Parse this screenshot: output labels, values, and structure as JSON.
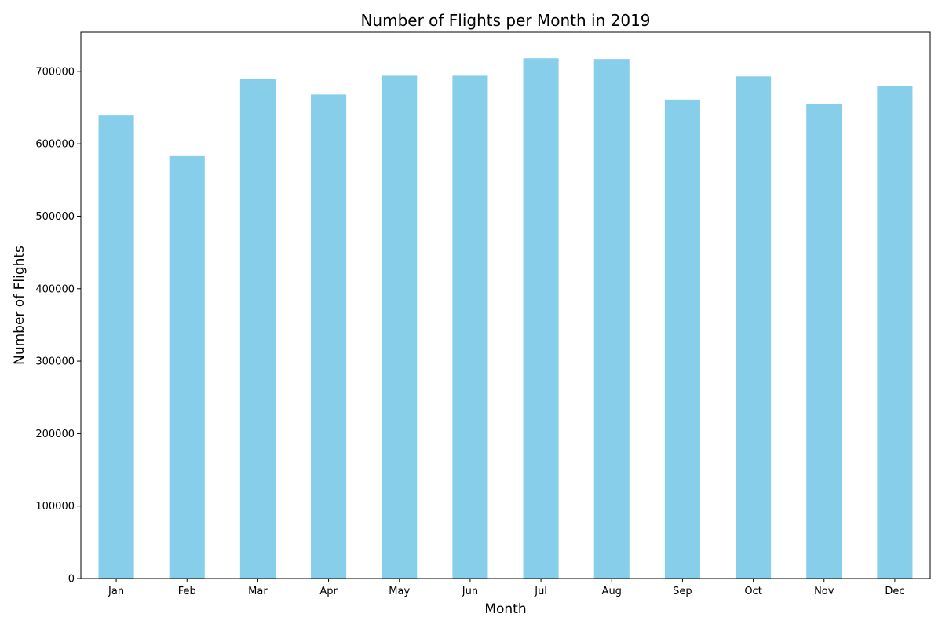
{
  "chart_data": {
    "type": "bar",
    "title": "Number of Flights per Month in 2019",
    "xlabel": "Month",
    "ylabel": "Number of Flights",
    "categories": [
      "Jan",
      "Feb",
      "Mar",
      "Apr",
      "May",
      "Jun",
      "Jul",
      "Aug",
      "Sep",
      "Oct",
      "Nov",
      "Dec"
    ],
    "values": [
      639000,
      583000,
      689000,
      668000,
      694000,
      694000,
      718000,
      717000,
      661000,
      693000,
      655000,
      680000
    ],
    "ylim": [
      0,
      754000
    ],
    "yticks": [
      0,
      100000,
      200000,
      300000,
      400000,
      500000,
      600000,
      700000
    ],
    "ytick_labels": [
      "0",
      "100000",
      "200000",
      "300000",
      "400000",
      "500000",
      "600000",
      "700000"
    ],
    "bar_color": "#87ceeb",
    "grid": false,
    "legend": "none"
  }
}
